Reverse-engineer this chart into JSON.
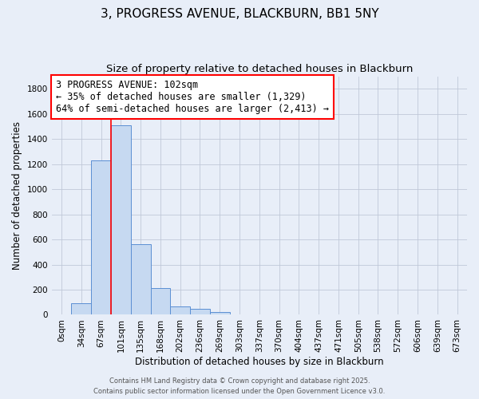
{
  "title": "3, PROGRESS AVENUE, BLACKBURN, BB1 5NY",
  "subtitle": "Size of property relative to detached houses in Blackburn",
  "xlabel": "Distribution of detached houses by size in Blackburn",
  "ylabel": "Number of detached properties",
  "bar_labels": [
    "0sqm",
    "34sqm",
    "67sqm",
    "101sqm",
    "135sqm",
    "168sqm",
    "202sqm",
    "236sqm",
    "269sqm",
    "303sqm",
    "337sqm",
    "370sqm",
    "404sqm",
    "437sqm",
    "471sqm",
    "505sqm",
    "538sqm",
    "572sqm",
    "606sqm",
    "639sqm",
    "673sqm"
  ],
  "bar_values": [
    0,
    90,
    1230,
    1510,
    565,
    210,
    65,
    45,
    20,
    0,
    0,
    0,
    0,
    0,
    0,
    0,
    0,
    0,
    0,
    0,
    0
  ],
  "bar_color": "#c6d9f1",
  "bar_edge_color": "#5b8fd4",
  "background_color": "#e8eef8",
  "grid_color": "#c0c8d8",
  "annotation_line1": "3 PROGRESS AVENUE: 102sqm",
  "annotation_line2": "← 35% of detached houses are smaller (1,329)",
  "annotation_line3": "64% of semi-detached houses are larger (2,413) →",
  "annotation_box_facecolor": "white",
  "annotation_box_edgecolor": "red",
  "redline_x": 2.5,
  "ylim": [
    0,
    1900
  ],
  "yticks": [
    0,
    200,
    400,
    600,
    800,
    1000,
    1200,
    1400,
    1600,
    1800
  ],
  "footer1": "Contains HM Land Registry data © Crown copyright and database right 2025.",
  "footer2": "Contains public sector information licensed under the Open Government Licence v3.0.",
  "title_fontsize": 11,
  "subtitle_fontsize": 9.5,
  "annotation_fontsize": 8.5,
  "axis_label_fontsize": 8.5,
  "tick_fontsize": 7.5,
  "footer_fontsize": 6.0
}
